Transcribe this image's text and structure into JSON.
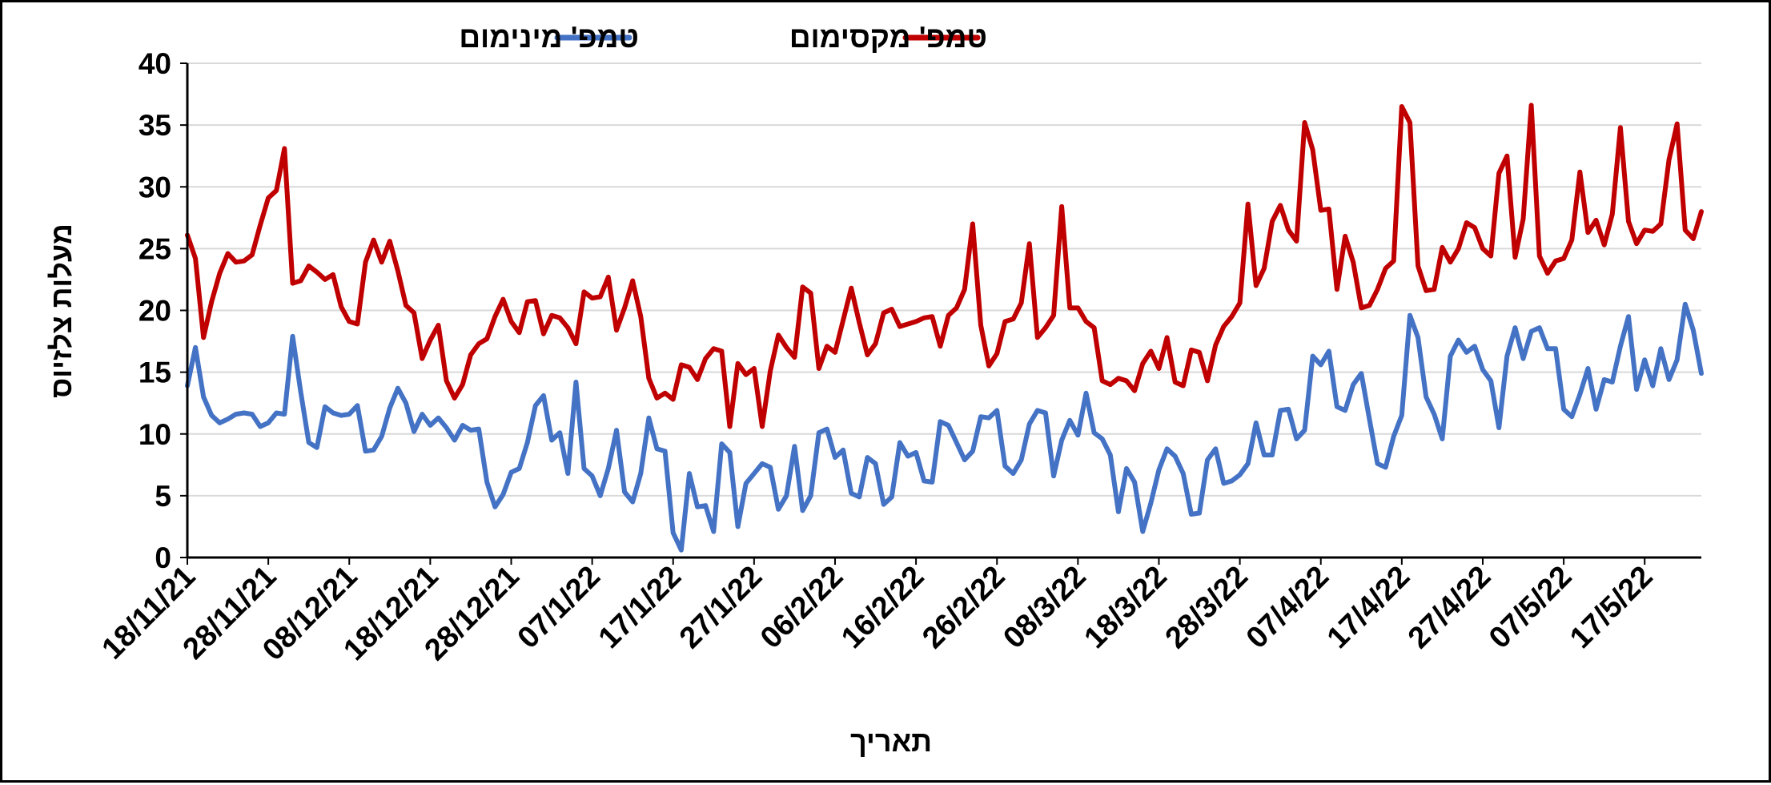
{
  "chart_data": {
    "type": "line",
    "title": "",
    "xlabel": "תאריך",
    "ylabel": "מעלות צלזיוס",
    "ylim": [
      0,
      40
    ],
    "y_ticks": [
      0,
      5,
      10,
      15,
      20,
      25,
      30,
      35,
      40
    ],
    "grid": true,
    "legend_position": "top",
    "x_start_date": "2021-11-18",
    "x_tick_labels": [
      "18/11/21",
      "28/11/21",
      "08/12/21",
      "18/12/21",
      "28/12/21",
      "07/1/22",
      "17/1/22",
      "27/1/22",
      "06/2/22",
      "16/2/22",
      "26/2/22",
      "08/3/22",
      "18/3/22",
      "28/3/22",
      "07/4/22",
      "17/4/22",
      "27/4/22",
      "07/5/22",
      "17/5/22"
    ],
    "x_tick_day_offsets": [
      0,
      10,
      20,
      30,
      40,
      50,
      60,
      70,
      80,
      90,
      100,
      110,
      120,
      130,
      140,
      150,
      160,
      170,
      180
    ],
    "series": [
      {
        "name": "טמפ' מקסימום",
        "color": "#c00000",
        "values": [
          26.1,
          24.2,
          17.8,
          20.7,
          23.0,
          24.6,
          23.9,
          24.0,
          24.5,
          26.9,
          29.1,
          29.7,
          33.1,
          22.2,
          22.4,
          23.6,
          23.1,
          22.5,
          22.9,
          20.3,
          19.1,
          18.9,
          23.9,
          25.7,
          23.9,
          25.6,
          23.2,
          20.4,
          19.8,
          16.1,
          17.6,
          18.8,
          14.3,
          12.9,
          14.0,
          16.4,
          17.3,
          17.7,
          19.5,
          20.9,
          19.1,
          18.2,
          20.7,
          20.8,
          18.1,
          19.6,
          19.4,
          18.6,
          17.3,
          21.5,
          21.0,
          21.1,
          22.7,
          18.4,
          20.2,
          22.4,
          19.5,
          14.5,
          12.9,
          13.3,
          12.8,
          15.6,
          15.4,
          14.4,
          16.1,
          16.9,
          16.7,
          10.6,
          15.7,
          14.8,
          15.3,
          10.6,
          15.1,
          18.0,
          17.0,
          16.2,
          21.9,
          21.4,
          15.3,
          17.1,
          16.6,
          19.2,
          21.8,
          19.0,
          16.4,
          17.3,
          19.8,
          20.1,
          18.7,
          18.9,
          19.1,
          19.4,
          19.5,
          17.1,
          19.6,
          20.2,
          21.7,
          27.0,
          18.8,
          15.5,
          16.5,
          19.1,
          19.3,
          20.6,
          25.4,
          17.8,
          18.6,
          19.6,
          28.4,
          20.2,
          20.2,
          19.1,
          18.6,
          14.3,
          14.0,
          14.5,
          14.3,
          13.5,
          15.7,
          16.7,
          15.3,
          17.8,
          14.2,
          13.9,
          16.8,
          16.6,
          14.3,
          17.2,
          18.7,
          19.5,
          20.6,
          28.6,
          22.0,
          23.4,
          27.2,
          28.5,
          26.5,
          25.6,
          35.2,
          33.0,
          28.1,
          28.2,
          21.7,
          26.0,
          23.9,
          20.2,
          20.4,
          21.7,
          23.4,
          24.0,
          36.5,
          35.2,
          23.6,
          21.6,
          21.7,
          25.1,
          23.9,
          25.0,
          27.1,
          26.7,
          25.0,
          24.4,
          31.1,
          32.5,
          24.3,
          27.4,
          36.6,
          24.4,
          23.0,
          24.0,
          24.2,
          25.7,
          31.2,
          26.3,
          27.3,
          25.3,
          27.8,
          34.8,
          27.2,
          25.4,
          26.5,
          26.4,
          27.0,
          32.2,
          35.1,
          26.5,
          25.8,
          28.0
        ]
      },
      {
        "name": "טמפ' מינימום",
        "color": "#4472c4",
        "values": [
          13.9,
          17.0,
          13.0,
          11.5,
          10.9,
          11.2,
          11.6,
          11.7,
          11.6,
          10.6,
          10.9,
          11.7,
          11.6,
          17.9,
          13.4,
          9.3,
          8.9,
          12.2,
          11.7,
          11.5,
          11.6,
          12.3,
          8.6,
          8.7,
          9.8,
          12.1,
          13.7,
          12.5,
          10.2,
          11.6,
          10.7,
          11.3,
          10.5,
          9.5,
          10.7,
          10.3,
          10.4,
          6.1,
          4.1,
          5.1,
          6.9,
          7.2,
          9.3,
          12.3,
          13.1,
          9.5,
          10.1,
          6.8,
          14.2,
          7.2,
          6.6,
          5.0,
          7.2,
          10.3,
          5.3,
          4.5,
          6.8,
          11.3,
          8.8,
          8.6,
          2.0,
          0.6,
          6.8,
          4.1,
          4.2,
          2.1,
          9.2,
          8.5,
          2.5,
          6.0,
          6.8,
          7.6,
          7.3,
          3.9,
          5.0,
          9.0,
          3.8,
          5.0,
          10.1,
          10.4,
          8.1,
          8.7,
          5.2,
          4.9,
          8.1,
          7.6,
          4.3,
          4.9,
          9.3,
          8.2,
          8.5,
          6.2,
          6.1,
          11.0,
          10.7,
          9.3,
          7.9,
          8.6,
          11.4,
          11.3,
          11.9,
          7.4,
          6.8,
          7.9,
          10.8,
          11.9,
          11.7,
          6.6,
          9.5,
          11.1,
          9.9,
          13.3,
          10.1,
          9.6,
          8.3,
          3.7,
          7.2,
          6.1,
          2.1,
          4.4,
          7.1,
          8.8,
          8.2,
          6.8,
          3.5,
          3.6,
          7.9,
          8.8,
          6.0,
          6.2,
          6.7,
          7.6,
          10.9,
          8.3,
          8.3,
          11.9,
          12.0,
          9.6,
          10.3,
          16.3,
          15.6,
          16.7,
          12.2,
          11.9,
          14.0,
          14.9,
          11.2,
          7.6,
          7.3,
          9.8,
          11.5,
          19.6,
          17.8,
          13.0,
          11.6,
          9.6,
          16.3,
          17.6,
          16.6,
          17.1,
          15.2,
          14.3,
          10.5,
          16.3,
          18.6,
          16.1,
          18.3,
          18.6,
          16.9,
          16.9,
          12.0,
          11.4,
          13.2,
          15.3,
          12.0,
          14.4,
          14.2,
          17.1,
          19.5,
          13.6,
          16.0,
          13.9,
          16.9,
          14.4,
          16.0,
          20.5,
          18.4,
          14.9
        ]
      }
    ]
  }
}
